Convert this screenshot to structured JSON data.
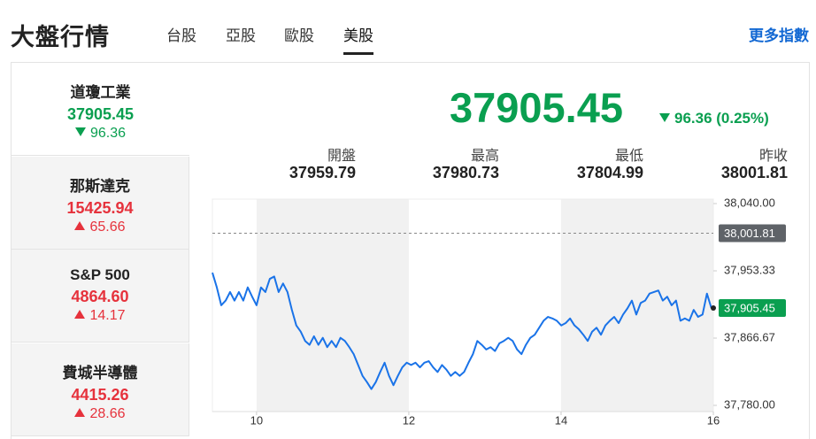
{
  "header": {
    "title": "大盤行情",
    "tabs": [
      "台股",
      "亞股",
      "歐股",
      "美股"
    ],
    "active_tab": 3,
    "more_link": "更多指數"
  },
  "indices": [
    {
      "name": "道瓊工業",
      "price": "37905.45",
      "change": "96.36",
      "direction": "down"
    },
    {
      "name": "那斯達克",
      "price": "15425.94",
      "change": "65.66",
      "direction": "up"
    },
    {
      "name": "S&P 500",
      "price": "4864.60",
      "change": "14.17",
      "direction": "up"
    },
    {
      "name": "費城半導體",
      "price": "4415.26",
      "change": "28.66",
      "direction": "up"
    }
  ],
  "selected_index": 0,
  "quote": {
    "price": "37905.45",
    "change": "96.36 (0.25%)",
    "direction": "down",
    "stats": [
      {
        "label": "開盤",
        "value": "37959.79"
      },
      {
        "label": "最高",
        "value": "37980.73"
      },
      {
        "label": "最低",
        "value": "37804.99"
      },
      {
        "label": "昨收",
        "value": "38001.81"
      }
    ]
  },
  "chart_data": {
    "type": "line",
    "color": "#1a73e8",
    "x": [
      9.42,
      9.478,
      9.536,
      9.594,
      9.652,
      9.71,
      9.768,
      9.826,
      9.884,
      9.942,
      10,
      10.058,
      10.116,
      10.174,
      10.232,
      10.29,
      10.348,
      10.406,
      10.464,
      10.522,
      10.58,
      10.638,
      10.696,
      10.754,
      10.812,
      10.87,
      10.928,
      10.986,
      11.044,
      11.102,
      11.16,
      11.218,
      11.276,
      11.334,
      11.392,
      11.45,
      11.508,
      11.566,
      11.624,
      11.682,
      11.74,
      11.798,
      11.856,
      11.914,
      11.972,
      12.03,
      12.088,
      12.146,
      12.204,
      12.262,
      12.32,
      12.378,
      12.436,
      12.494,
      12.552,
      12.61,
      12.668,
      12.726,
      12.784,
      12.842,
      12.9,
      12.958,
      13.016,
      13.074,
      13.132,
      13.19,
      13.248,
      13.306,
      13.364,
      13.422,
      13.48,
      13.538,
      13.596,
      13.654,
      13.712,
      13.77,
      13.828,
      13.886,
      13.944,
      14.002,
      14.06,
      14.118,
      14.176,
      14.234,
      14.292,
      14.35,
      14.408,
      14.466,
      14.524,
      14.582,
      14.64,
      14.698,
      14.756,
      14.814,
      14.872,
      14.93,
      14.988,
      15.046,
      15.104,
      15.162,
      15.22,
      15.278,
      15.336,
      15.394,
      15.452,
      15.51,
      15.568,
      15.626,
      15.684,
      15.742,
      15.8,
      15.858,
      15.916,
      15.974
    ],
    "values": [
      37951,
      37932,
      37909,
      37915,
      37926,
      37915,
      37926,
      37915,
      37932,
      37920,
      37909,
      37932,
      37926,
      37943,
      37946,
      37926,
      37937,
      37926,
      37903,
      37883,
      37875,
      37863,
      37858,
      37869,
      37858,
      37867,
      37855,
      37863,
      37855,
      37867,
      37863,
      37855,
      37846,
      37832,
      37818,
      37810,
      37801,
      37810,
      37823,
      37835,
      37818,
      37806,
      37818,
      37829,
      37835,
      37832,
      37835,
      37829,
      37835,
      37837,
      37829,
      37823,
      37832,
      37826,
      37818,
      37823,
      37818,
      37823,
      37835,
      37846,
      37863,
      37858,
      37852,
      37855,
      37850,
      37860,
      37863,
      37867,
      37863,
      37852,
      37846,
      37858,
      37867,
      37871,
      37880,
      37889,
      37894,
      37892,
      37889,
      37883,
      37886,
      37892,
      37883,
      37878,
      37871,
      37863,
      37875,
      37880,
      37871,
      37883,
      37889,
      37894,
      37886,
      37897,
      37905,
      37915,
      37897,
      37912,
      37915,
      37924,
      37926,
      37928,
      37915,
      37920,
      37909,
      37915,
      37889,
      37892,
      37889,
      37903,
      37894,
      37897,
      37924,
      37905.45
    ],
    "xlim": [
      9.42,
      16
    ],
    "xticks": [
      10,
      12,
      14,
      16
    ],
    "ylim": [
      37780,
      38040
    ],
    "yticks": [
      {
        "value": 38040,
        "label": "38,040.00"
      },
      {
        "value": 37953.33,
        "label": "37,953.33"
      },
      {
        "value": 37866.67,
        "label": "37,866.67"
      },
      {
        "value": 37780,
        "label": "37,780.00"
      }
    ],
    "reference": {
      "value": 38001.81,
      "label": "38,001.81"
    },
    "last": {
      "value": 37905.45,
      "label": "37,905.45"
    }
  }
}
